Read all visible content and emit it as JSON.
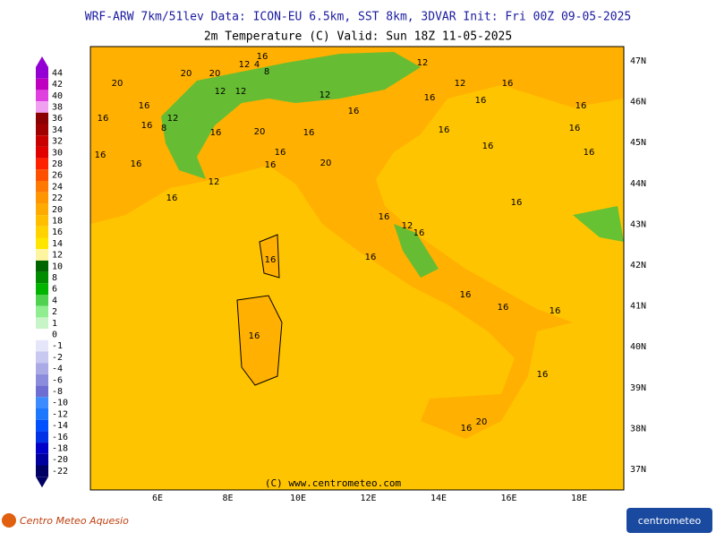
{
  "header": {
    "line1": "WRF-ARW 7km/51lev   Data: ICON-EU 6.5km, SST 8km, 3DVAR   Init: Fri 00Z 09-05-2025",
    "line2": "2m Temperature (C)  Valid: Sun 18Z 11-05-2025"
  },
  "legend": {
    "levels": [
      44,
      42,
      40,
      38,
      36,
      34,
      32,
      30,
      28,
      26,
      24,
      22,
      20,
      18,
      16,
      14,
      12,
      10,
      8,
      6,
      4,
      2,
      1,
      0,
      -1,
      -2,
      -4,
      -6,
      -8,
      -10,
      -12,
      -14,
      -16,
      -18,
      -20,
      -22
    ],
    "colors": [
      "#9400d3",
      "#c000c0",
      "#e040e0",
      "#f0a0f0",
      "#8b0000",
      "#a00000",
      "#c80000",
      "#e00000",
      "#ff2000",
      "#ff5000",
      "#ff7800",
      "#ff9600",
      "#ffaa00",
      "#ffbe00",
      "#ffd200",
      "#ffe600",
      "#fff5a0",
      "#006400",
      "#008c00",
      "#00b400",
      "#50d250",
      "#90ee90",
      "#c8f5c8",
      "#ffffff",
      "#e6e6fa",
      "#c8c8f0",
      "#aaaae6",
      "#8c8cdc",
      "#6e6ed2",
      "#3c8cff",
      "#1e78ff",
      "#0050ff",
      "#0032e6",
      "#0000c8",
      "#0000a0",
      "#000064"
    ]
  },
  "map": {
    "lat_labels": [
      "47N",
      "46N",
      "45N",
      "44N",
      "43N",
      "42N",
      "41N",
      "40N",
      "39N",
      "38N",
      "37N"
    ],
    "lon_labels": [
      "6E",
      "8E",
      "10E",
      "12E",
      "14E",
      "16E",
      "18E"
    ],
    "contour_labels": [
      "20",
      "20",
      "12",
      "4",
      "8",
      "16",
      "20",
      "16",
      "16",
      "16",
      "12",
      "8",
      "16",
      "16",
      "12",
      "12",
      "12",
      "16",
      "16",
      "16",
      "20",
      "16",
      "16",
      "20",
      "16",
      "12",
      "16",
      "16",
      "16",
      "12",
      "12",
      "16",
      "16",
      "16",
      "16",
      "16",
      "16",
      "16",
      "16",
      "16",
      "16",
      "20",
      "16",
      "16",
      "16",
      "16",
      "12",
      "16",
      "16"
    ],
    "copyright": "(C) www.centrometeo.com"
  },
  "footer": {
    "left_logo": "Centro Meteo Aquesio",
    "right_logo": "centrometeo"
  }
}
